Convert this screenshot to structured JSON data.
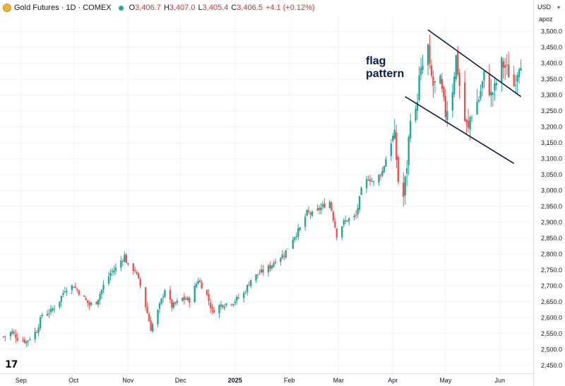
{
  "header": {
    "symbol": "Gold Futures · 1D · COMEX",
    "o_label": "O",
    "o_value": "3,406.7",
    "h_label": "H",
    "h_value": "3,407.0",
    "l_label": "L",
    "l_value": "3,405.4",
    "c_label": "C",
    "c_value": "3,406.5",
    "change": "+4.1 (+0.12%)",
    "currency": "USD",
    "scale_mode": "apoz",
    "logo_icon": "gold-coin-icon",
    "live_icon": "market-status-dot-icon"
  },
  "annotation": {
    "line1": "flag",
    "line2": "pattern"
  },
  "colors": {
    "up": "#26a69a",
    "down": "#ef5350",
    "trendline": "#0d1a4a",
    "grid": "#f0f3fa",
    "text": "#131722"
  },
  "chart_data": {
    "type": "candlestick",
    "title": "Gold Futures · 1D · COMEX",
    "ylim": [
      2425,
      3550
    ],
    "y_ticks": [
      "2,450.0",
      "2,500.0",
      "2,550.0",
      "2,600.0",
      "2,650.0",
      "2,700.0",
      "2,750.0",
      "2,800.0",
      "2,850.0",
      "2,900.0",
      "2,950.0",
      "3,000.0",
      "3,050.0",
      "3,100.0",
      "3,150.0",
      "3,200.0",
      "3,250.0",
      "3,300.0",
      "3,350.0",
      "3,400.0",
      "3,450.0",
      "3,500.0"
    ],
    "x_ticks": [
      "Sep",
      "Oct",
      "Nov",
      "Dec",
      "2025",
      "Feb",
      "Mar",
      "Apr",
      "May",
      "Jun"
    ],
    "x_tick_bold": "2025",
    "close_path": [
      [
        "2024-08-22",
        2540
      ],
      [
        "2024-08-27",
        2555
      ],
      [
        "2024-08-30",
        2535
      ],
      [
        "2024-09-04",
        2525
      ],
      [
        "2024-09-10",
        2560
      ],
      [
        "2024-09-13",
        2610
      ],
      [
        "2024-09-18",
        2620
      ],
      [
        "2024-09-23",
        2655
      ],
      [
        "2024-09-26",
        2690
      ],
      [
        "2024-10-01",
        2700
      ],
      [
        "2024-10-04",
        2680
      ],
      [
        "2024-10-07",
        2660
      ],
      [
        "2024-10-10",
        2640
      ],
      [
        "2024-10-14",
        2650
      ],
      [
        "2024-10-18",
        2700
      ],
      [
        "2024-10-22",
        2740
      ],
      [
        "2024-10-25",
        2755
      ],
      [
        "2024-10-30",
        2795
      ],
      [
        "2024-11-01",
        2760
      ],
      [
        "2024-11-05",
        2750
      ],
      [
        "2024-11-08",
        2700
      ],
      [
        "2024-11-12",
        2615
      ],
      [
        "2024-11-14",
        2565
      ],
      [
        "2024-11-18",
        2620
      ],
      [
        "2024-11-22",
        2690
      ],
      [
        "2024-11-26",
        2635
      ],
      [
        "2024-12-02",
        2660
      ],
      [
        "2024-12-06",
        2655
      ],
      [
        "2024-12-11",
        2720
      ],
      [
        "2024-12-16",
        2670
      ],
      [
        "2024-12-19",
        2620
      ],
      [
        "2024-12-24",
        2640
      ],
      [
        "2024-12-31",
        2650
      ],
      [
        "2025-01-06",
        2675
      ],
      [
        "2025-01-10",
        2720
      ],
      [
        "2025-01-15",
        2740
      ],
      [
        "2025-01-21",
        2760
      ],
      [
        "2025-01-24",
        2780
      ],
      [
        "2025-01-29",
        2800
      ],
      [
        "2025-02-03",
        2850
      ],
      [
        "2025-02-07",
        2880
      ],
      [
        "2025-02-11",
        2930
      ],
      [
        "2025-02-14",
        2925
      ],
      [
        "2025-02-20",
        2950
      ],
      [
        "2025-02-24",
        2965
      ],
      [
        "2025-02-28",
        2860
      ],
      [
        "2025-03-04",
        2900
      ],
      [
        "2025-03-07",
        2910
      ],
      [
        "2025-03-11",
        2920
      ],
      [
        "2025-03-14",
        3000
      ],
      [
        "2025-03-18",
        3040
      ],
      [
        "2025-03-21",
        3025
      ],
      [
        "2025-03-26",
        3060
      ],
      [
        "2025-03-31",
        3160
      ],
      [
        "2025-04-02",
        3170
      ],
      [
        "2025-04-04",
        3030
      ],
      [
        "2025-04-07",
        2980
      ],
      [
        "2025-04-09",
        3080
      ],
      [
        "2025-04-11",
        3240
      ],
      [
        "2025-04-14",
        3240
      ],
      [
        "2025-04-16",
        3350
      ],
      [
        "2025-04-21",
        3450
      ],
      [
        "2025-04-22",
        3380
      ],
      [
        "2025-04-24",
        3330
      ],
      [
        "2025-04-28",
        3340
      ],
      [
        "2025-05-01",
        3240
      ],
      [
        "2025-05-05",
        3320
      ],
      [
        "2025-05-07",
        3420
      ],
      [
        "2025-05-09",
        3330
      ],
      [
        "2025-05-12",
        3220
      ],
      [
        "2025-05-14",
        3190
      ],
      [
        "2025-05-15",
        3230
      ],
      [
        "2025-05-20",
        3290
      ],
      [
        "2025-05-23",
        3360
      ],
      [
        "2025-05-27",
        3300
      ],
      [
        "2025-05-29",
        3320
      ],
      [
        "2025-06-02",
        3400
      ],
      [
        "2025-06-05",
        3380
      ],
      [
        "2025-06-09",
        3330
      ],
      [
        "2025-06-12",
        3400
      ],
      [
        "2025-06-13",
        3406.5
      ]
    ],
    "trendlines": [
      {
        "from": [
          "2025-04-21",
          3505
        ],
        "to": [
          "2025-06-13",
          3295
        ]
      },
      {
        "from": [
          "2025-04-08",
          3295
        ],
        "to": [
          "2025-06-09",
          3085
        ]
      }
    ],
    "grid": true,
    "legend": "none"
  }
}
